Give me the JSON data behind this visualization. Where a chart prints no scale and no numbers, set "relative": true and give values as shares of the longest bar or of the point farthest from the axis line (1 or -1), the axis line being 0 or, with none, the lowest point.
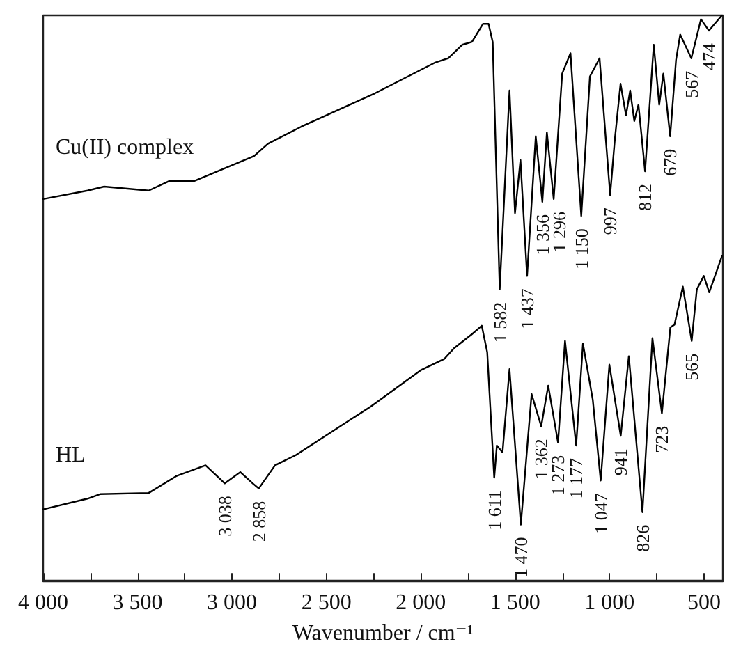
{
  "chart_data": {
    "type": "line",
    "relative": true,
    "xlabel": "Wavenumber / cm⁻¹",
    "grid": false,
    "legend": false,
    "xlim": [
      4000,
      400
    ],
    "xticks": [
      {
        "value": 4000,
        "label": "4 000"
      },
      {
        "value": 3750,
        "label": null
      },
      {
        "value": 3500,
        "label": "3 500"
      },
      {
        "value": 3250,
        "label": null
      },
      {
        "value": 3000,
        "label": "3 000"
      },
      {
        "value": 2750,
        "label": null
      },
      {
        "value": 2500,
        "label": "2 500"
      },
      {
        "value": 2250,
        "label": null
      },
      {
        "value": 2000,
        "label": "2 000"
      },
      {
        "value": 1750,
        "label": null
      },
      {
        "value": 1500,
        "label": "1 500"
      },
      {
        "value": 1250,
        "label": null
      },
      {
        "value": 1000,
        "label": "1 000"
      },
      {
        "value": 750,
        "label": null
      },
      500
    ],
    "series": [
      {
        "name": "Cu(II) complex",
        "color": "#000000",
        "x": [
          4000,
          3765,
          3677,
          3441,
          3331,
          3199,
          2883,
          2809,
          2633,
          2243,
          1927,
          1854,
          1780,
          1729,
          1670,
          1641,
          1619,
          1582,
          1530,
          1501,
          1472,
          1437,
          1391,
          1356,
          1332,
          1296,
          1251,
          1207,
          1150,
          1104,
          1053,
          997,
          972,
          942,
          913,
          891,
          869,
          847,
          812,
          766,
          737,
          715,
          679,
          648,
          626,
          567,
          516,
          474,
          405
        ],
        "values": [
          0.675,
          0.69,
          0.697,
          0.69,
          0.707,
          0.707,
          0.751,
          0.773,
          0.803,
          0.862,
          0.916,
          0.924,
          0.948,
          0.953,
          0.985,
          0.985,
          0.953,
          0.515,
          0.867,
          0.65,
          0.744,
          0.539,
          0.786,
          0.67,
          0.793,
          0.675,
          0.897,
          0.933,
          0.645,
          0.892,
          0.924,
          0.682,
          0.781,
          0.879,
          0.823,
          0.867,
          0.813,
          0.842,
          0.724,
          0.948,
          0.842,
          0.897,
          0.786,
          0.921,
          0.966,
          0.924,
          0.993,
          0.973,
          1.0
        ]
      },
      {
        "name": "HL",
        "color": "#000000",
        "x": [
          4000,
          3765,
          3699,
          3441,
          3294,
          3140,
          3038,
          2956,
          2890,
          2858,
          2772,
          2662,
          2265,
          2001,
          1876,
          1824,
          1729,
          1677,
          1648,
          1611,
          1597,
          1567,
          1530,
          1470,
          1413,
          1362,
          1325,
          1273,
          1236,
          1177,
          1141,
          1089,
          1047,
          1001,
          941,
          898,
          826,
          773,
          723,
          678,
          656,
          612,
          565,
          538,
          501,
          472,
          405
        ],
        "values": [
          0.126,
          0.145,
          0.153,
          0.155,
          0.185,
          0.204,
          0.172,
          0.192,
          0.172,
          0.163,
          0.204,
          0.222,
          0.308,
          0.372,
          0.392,
          0.411,
          0.436,
          0.451,
          0.404,
          0.182,
          0.239,
          0.227,
          0.374,
          0.099,
          0.33,
          0.273,
          0.345,
          0.244,
          0.424,
          0.239,
          0.419,
          0.32,
          0.177,
          0.382,
          0.256,
          0.397,
          0.121,
          0.429,
          0.296,
          0.448,
          0.453,
          0.52,
          0.424,
          0.515,
          0.539,
          0.51,
          0.574
        ]
      }
    ],
    "annotations": [
      {
        "text": "1 582",
        "x": 1582,
        "y": 0.515
      },
      {
        "text": "1 437",
        "x": 1437,
        "y": 0.539
      },
      {
        "text": "1 356",
        "x": 1356,
        "y": 0.67
      },
      {
        "text": "1 296",
        "x": 1296,
        "y": 0.675
      },
      {
        "text": "1 150",
        "x": 1150,
        "y": 0.645
      },
      {
        "text": "997",
        "x": 997,
        "y": 0.682
      },
      {
        "text": "812",
        "x": 812,
        "y": 0.724
      },
      {
        "text": "679",
        "x": 679,
        "y": 0.786
      },
      {
        "text": "567",
        "x": 567,
        "y": 0.924
      },
      {
        "text": "474",
        "x": 474,
        "y": 0.973
      },
      {
        "text": "3 038",
        "x": 3038,
        "y": 0.172
      },
      {
        "text": "2 858",
        "x": 2858,
        "y": 0.163
      },
      {
        "text": "1 611",
        "x": 1611,
        "y": 0.182
      },
      {
        "text": "1 470",
        "x": 1470,
        "y": 0.099
      },
      {
        "text": "1 362",
        "x": 1362,
        "y": 0.273
      },
      {
        "text": "1 273",
        "x": 1273,
        "y": 0.244
      },
      {
        "text": "1 177",
        "x": 1177,
        "y": 0.239
      },
      {
        "text": "1 047",
        "x": 1047,
        "y": 0.177
      },
      {
        "text": "941",
        "x": 941,
        "y": 0.256
      },
      {
        "text": "826",
        "x": 826,
        "y": 0.121
      },
      {
        "text": "723",
        "x": 723,
        "y": 0.296
      },
      {
        "text": "565",
        "x": 565,
        "y": 0.424
      }
    ]
  }
}
